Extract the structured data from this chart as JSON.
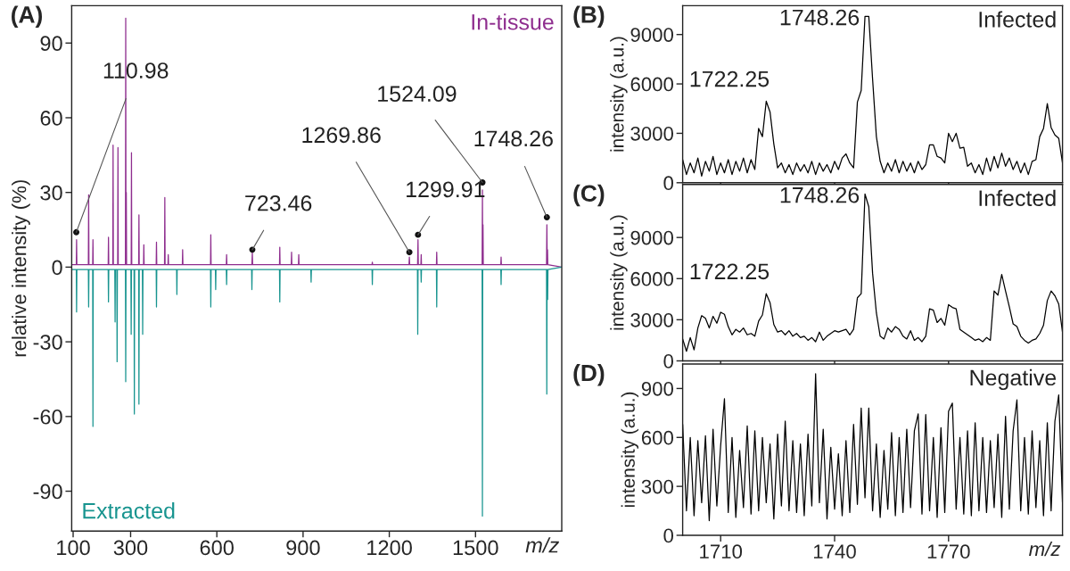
{
  "chart_data": [
    {
      "type": "line",
      "title": "(A)",
      "xlabel": "m/z",
      "ylabel": "relative intensity (%)",
      "xlim": [
        95,
        1800
      ],
      "ylim": [
        -106,
        105
      ],
      "xticks": [
        100,
        300,
        600,
        900,
        1200,
        1500
      ],
      "yticks": [
        -90,
        -60,
        -30,
        0,
        30,
        60,
        90
      ],
      "series": [
        {
          "name": "In-tissue",
          "color": "#8e2d8e",
          "x": [
            95,
            111,
            112,
            113,
            153,
            154,
            155,
            168,
            169,
            170,
            222,
            223,
            224,
            238,
            239,
            240,
            255,
            256,
            257,
            282,
            283,
            284,
            285,
            286,
            302,
            303,
            304,
            328,
            329,
            330,
            345,
            346,
            347,
            389,
            390,
            391,
            418,
            419,
            420,
            430,
            431,
            432,
            480,
            481,
            482,
            578,
            579,
            580,
            633,
            634,
            635,
            722,
            723.46,
            724.5,
            818,
            819,
            820,
            859,
            860,
            861,
            884,
            885,
            886,
            1140,
            1141,
            1142,
            1268.5,
            1269.86,
            1271,
            1298.5,
            1299.91,
            1301,
            1310,
            1311,
            1312,
            1364,
            1365,
            1366,
            1523,
            1524.09,
            1525,
            1526,
            1527,
            1588,
            1589,
            1590,
            1747,
            1748.26,
            1749.5,
            1750.5,
            1751.5,
            1800
          ],
          "values": [
            1,
            1,
            11,
            1,
            1,
            29,
            1,
            1,
            11,
            1,
            1,
            12,
            1,
            1,
            49,
            1,
            1,
            48,
            1,
            1,
            100,
            1,
            30,
            1,
            1,
            46,
            1,
            1,
            21,
            1,
            1,
            9,
            1,
            1,
            10,
            1,
            1,
            28,
            1,
            1,
            5,
            1,
            1,
            7,
            1,
            1,
            13,
            1,
            1,
            5,
            1,
            1,
            6,
            1,
            1,
            8,
            1,
            1,
            6,
            1,
            1,
            5,
            1,
            1,
            2,
            1,
            1,
            4,
            1,
            1,
            11,
            1,
            1,
            5,
            1,
            1,
            6,
            1,
            1,
            31,
            1,
            17,
            1,
            1,
            4,
            1,
            1,
            17,
            1,
            7,
            1,
            0
          ]
        },
        {
          "name": "Extracted",
          "color": "#17948f",
          "x": [
            95,
            111,
            112,
            113,
            153,
            154,
            155,
            168,
            169,
            170,
            222,
            223,
            224,
            245,
            246,
            247,
            252,
            253,
            254,
            282,
            283,
            284,
            301,
            302,
            303,
            312,
            313,
            314,
            328,
            329,
            330,
            341,
            342,
            343,
            389,
            390,
            391,
            460,
            461,
            462,
            578,
            579,
            580,
            595,
            596,
            597,
            633,
            634,
            635,
            721,
            722,
            723,
            818,
            819,
            820,
            927,
            928,
            929,
            1140,
            1141,
            1142,
            1298,
            1299,
            1300,
            1310,
            1311,
            1312,
            1364,
            1365,
            1366,
            1523,
            1524,
            1525,
            1588,
            1589,
            1590,
            1747,
            1748,
            1749,
            1750,
            1751,
            1752,
            1800
          ],
          "values": [
            -1,
            -1,
            -18,
            -1,
            -1,
            -16,
            -1,
            -1,
            -64,
            -1,
            -1,
            -14,
            -1,
            -1,
            -22,
            -1,
            -1,
            -38,
            -1,
            -1,
            -46,
            -1,
            -1,
            -27,
            -1,
            -1,
            -59,
            -1,
            -1,
            -55,
            -1,
            -1,
            -27,
            -1,
            -1,
            -16,
            -1,
            -1,
            -11,
            -1,
            -1,
            -16,
            -1,
            -1,
            -9,
            -1,
            -1,
            -7,
            -1,
            -1,
            -9,
            -1,
            -1,
            -14,
            -1,
            -1,
            -6,
            -1,
            -1,
            -7,
            -1,
            -1,
            -27,
            -1,
            -1,
            -6,
            -1,
            -1,
            -16,
            -1,
            -1,
            -100,
            -1,
            -1,
            -7,
            -1,
            -1,
            -51,
            -1,
            -1,
            -13,
            -1,
            0
          ]
        }
      ],
      "annotations": [
        {
          "text": "110.98",
          "x": 110.98,
          "y": 14
        },
        {
          "text": "723.46",
          "x": 723.46,
          "y": 7
        },
        {
          "text": "1269.86",
          "x": 1269.86,
          "y": 6
        },
        {
          "text": "1299.91",
          "x": 1299.91,
          "y": 13
        },
        {
          "text": "1524.09",
          "x": 1524.09,
          "y": 34
        },
        {
          "text": "1748.26",
          "x": 1748.26,
          "y": 20
        }
      ]
    },
    {
      "type": "line",
      "title": "(B)",
      "ylabel": "intensity (a.u.)",
      "xlim": [
        1700,
        1800
      ],
      "ylim": [
        0,
        10750
      ],
      "xticks": [
        1710,
        1740,
        1770
      ],
      "yticks": [
        0,
        3000,
        6000,
        9000
      ],
      "tick_labels": "y",
      "series": [
        {
          "color": "#000000",
          "x": [
            1700,
            1701,
            1702,
            1703,
            1704,
            1705,
            1706,
            1707,
            1708,
            1709,
            1710,
            1711,
            1712,
            1713,
            1714,
            1715,
            1716,
            1717,
            1718,
            1719,
            1720,
            1721,
            1722,
            1723,
            1724,
            1725,
            1726,
            1727,
            1728,
            1729,
            1730,
            1731,
            1732,
            1733,
            1734,
            1735,
            1736,
            1737,
            1738,
            1739,
            1740,
            1741,
            1742,
            1743,
            1744,
            1745,
            1746,
            1747,
            1748,
            1749,
            1750,
            1751,
            1752,
            1753,
            1754,
            1755,
            1756,
            1757,
            1758,
            1759,
            1760,
            1761,
            1762,
            1763,
            1764,
            1765,
            1766,
            1767,
            1768,
            1769,
            1770,
            1771,
            1772,
            1773,
            1774,
            1775,
            1776,
            1777,
            1778,
            1779,
            1780,
            1781,
            1782,
            1783,
            1784,
            1785,
            1786,
            1787,
            1788,
            1789,
            1790,
            1791,
            1792,
            1793,
            1794,
            1795,
            1796,
            1797,
            1798,
            1799,
            1800
          ],
          "values": [
            1400,
            500,
            1200,
            600,
            1500,
            400,
            1300,
            700,
            1600,
            500,
            1200,
            600,
            1400,
            500,
            1300,
            700,
            1500,
            600,
            1400,
            800,
            3300,
            2800,
            4950,
            4300,
            2350,
            900,
            1200,
            600,
            1100,
            500,
            1200,
            700,
            1100,
            600,
            1300,
            500,
            1200,
            700,
            1100,
            600,
            1300,
            800,
            1500,
            1750,
            1200,
            900,
            4900,
            5600,
            10100,
            10100,
            6300,
            2800,
            1300,
            600,
            1200,
            700,
            1400,
            600,
            1300,
            700,
            1200,
            600,
            1300,
            800,
            1100,
            2300,
            2300,
            1600,
            1500,
            1200,
            3000,
            2500,
            3000,
            2100,
            2150,
            1000,
            1200,
            600,
            1100,
            500,
            1500,
            700,
            1600,
            900,
            1800,
            1000,
            1500,
            800,
            1300,
            600,
            1200,
            500,
            1300,
            1400,
            2800,
            3300,
            4800,
            3350,
            2900,
            2700,
            1200
          ]
        }
      ],
      "annotations": [
        {
          "text": "1748.26",
          "x": 1748.26,
          "y": 10100
        },
        {
          "text": "1722.25",
          "x": 1722.25,
          "y": 4950
        },
        "Infected"
      ]
    },
    {
      "type": "line",
      "title": "(C)",
      "ylabel": "intensity (a.u.)",
      "xlim": [
        1700,
        1800
      ],
      "ylim": [
        0,
        12870
      ],
      "xticks": [
        1710,
        1740,
        1770
      ],
      "yticks": [
        0,
        3000,
        6000,
        9000
      ],
      "tick_labels": "y",
      "series": [
        {
          "color": "#000000",
          "x": [
            1700,
            1701,
            1702,
            1703,
            1704,
            1705,
            1706,
            1707,
            1708,
            1709,
            1710,
            1711,
            1712,
            1713,
            1714,
            1715,
            1716,
            1717,
            1718,
            1719,
            1720,
            1721,
            1722,
            1723,
            1724,
            1725,
            1726,
            1727,
            1728,
            1729,
            1730,
            1731,
            1732,
            1733,
            1734,
            1735,
            1736,
            1737,
            1738,
            1739,
            1740,
            1741,
            1742,
            1743,
            1744,
            1745,
            1746,
            1747,
            1748,
            1749,
            1750,
            1751,
            1752,
            1753,
            1754,
            1755,
            1756,
            1757,
            1758,
            1759,
            1760,
            1761,
            1762,
            1763,
            1764,
            1765,
            1766,
            1767,
            1768,
            1769,
            1770,
            1771,
            1772,
            1773,
            1774,
            1775,
            1776,
            1777,
            1778,
            1779,
            1780,
            1781,
            1782,
            1783,
            1784,
            1785,
            1786,
            1787,
            1788,
            1789,
            1790,
            1791,
            1792,
            1793,
            1794,
            1795,
            1796,
            1797,
            1798,
            1799,
            1800
          ],
          "values": [
            1600,
            700,
            1700,
            800,
            2400,
            3300,
            3100,
            2400,
            3250,
            2750,
            3550,
            3400,
            2500,
            1900,
            2300,
            2100,
            2400,
            1900,
            2000,
            1800,
            2900,
            3350,
            4900,
            4250,
            2650,
            2100,
            2200,
            1900,
            2200,
            1800,
            2000,
            1700,
            1800,
            1500,
            1700,
            1400,
            2100,
            1500,
            1800,
            2000,
            2200,
            2100,
            2200,
            2300,
            1900,
            2300,
            4600,
            4900,
            12170,
            11240,
            6400,
            3500,
            1800,
            1600,
            2400,
            2100,
            2500,
            2300,
            1800,
            1600,
            2200,
            1500,
            1700,
            1400,
            1800,
            3800,
            3700,
            2800,
            3100,
            2600,
            4100,
            3900,
            3800,
            2300,
            2100,
            1900,
            1700,
            1500,
            1600,
            1400,
            1700,
            1500,
            5100,
            4800,
            6300,
            5100,
            3950,
            2700,
            2500,
            1800,
            1500,
            1300,
            1500,
            1600,
            2000,
            2600,
            4400,
            5100,
            4750,
            4150,
            2100
          ]
        }
      ],
      "annotations": [
        {
          "text": "1748.26",
          "x": 1748.26,
          "y": 12170
        },
        {
          "text": "1722.25",
          "x": 1722.25,
          "y": 4900
        },
        "Infected"
      ]
    },
    {
      "type": "line",
      "title": "(D)",
      "xlabel": "m/z",
      "ylabel": "intensity (a.u.)",
      "xlim": [
        1700,
        1800
      ],
      "ylim": [
        0,
        1050
      ],
      "xticks": [
        1710,
        1740,
        1770
      ],
      "yticks": [
        0,
        300,
        600,
        900
      ],
      "series": [
        {
          "color": "#000000",
          "x": [
            1700,
            1701,
            1702,
            1703,
            1704,
            1705,
            1706,
            1707,
            1708,
            1709,
            1710,
            1711,
            1712,
            1713,
            1714,
            1715,
            1716,
            1717,
            1718,
            1719,
            1720,
            1721,
            1722,
            1723,
            1724,
            1725,
            1726,
            1727,
            1728,
            1729,
            1730,
            1731,
            1732,
            1733,
            1734,
            1735,
            1736,
            1737,
            1738,
            1739,
            1740,
            1741,
            1742,
            1743,
            1744,
            1745,
            1746,
            1747,
            1748,
            1749,
            1750,
            1751,
            1752,
            1753,
            1754,
            1755,
            1756,
            1757,
            1758,
            1759,
            1760,
            1761,
            1762,
            1763,
            1764,
            1765,
            1766,
            1767,
            1768,
            1769,
            1770,
            1771,
            1772,
            1773,
            1774,
            1775,
            1776,
            1777,
            1778,
            1779,
            1780,
            1781,
            1782,
            1783,
            1784,
            1785,
            1786,
            1787,
            1788,
            1789,
            1790,
            1791,
            1792,
            1793,
            1794,
            1795,
            1796,
            1797,
            1798,
            1799,
            1800
          ],
          "values": [
            680,
            150,
            600,
            120,
            580,
            200,
            610,
            90,
            650,
            180,
            550,
            837,
            140,
            600,
            110,
            520,
            170,
            670,
            130,
            640,
            150,
            600,
            200,
            560,
            100,
            620,
            180,
            700,
            150,
            580,
            140,
            560,
            120,
            620,
            180,
            990,
            200,
            650,
            100,
            540,
            160,
            500,
            120,
            580,
            140,
            680,
            190,
            780,
            230,
            780,
            150,
            560,
            110,
            520,
            160,
            630,
            120,
            600,
            140,
            650,
            170,
            640,
            745,
            130,
            740,
            150,
            600,
            110,
            660,
            140,
            760,
            810,
            160,
            600,
            130,
            640,
            120,
            690,
            150,
            600,
            140,
            580,
            170,
            620,
            110,
            730,
            160,
            640,
            830,
            150,
            600,
            130,
            640,
            170,
            580,
            120,
            690,
            150,
            700,
            860,
            200
          ]
        }
      ],
      "annotations": [
        "Negative"
      ]
    }
  ]
}
